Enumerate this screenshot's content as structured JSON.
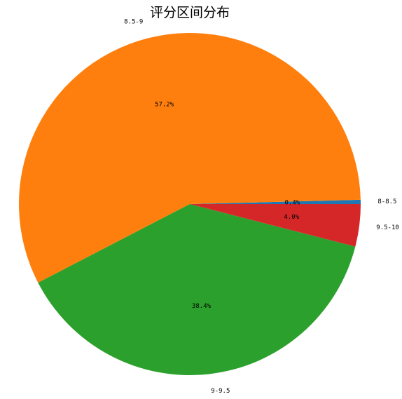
{
  "chart_data": {
    "type": "pie",
    "title": "评分区间分布",
    "start_angle_deg": 0,
    "direction": "counterclockwise",
    "slices": [
      {
        "label": "8-8.5",
        "value": 0.4,
        "pct_label": "0.4%",
        "color": "#1f77b4"
      },
      {
        "label": "8.5-9",
        "value": 57.2,
        "pct_label": "57.2%",
        "color": "#ff7f0e"
      },
      {
        "label": "9-9.5",
        "value": 38.4,
        "pct_label": "38.4%",
        "color": "#2ca02c"
      },
      {
        "label": "9.5-10",
        "value": 4.0,
        "pct_label": "4.0%",
        "color": "#d62728"
      }
    ]
  }
}
